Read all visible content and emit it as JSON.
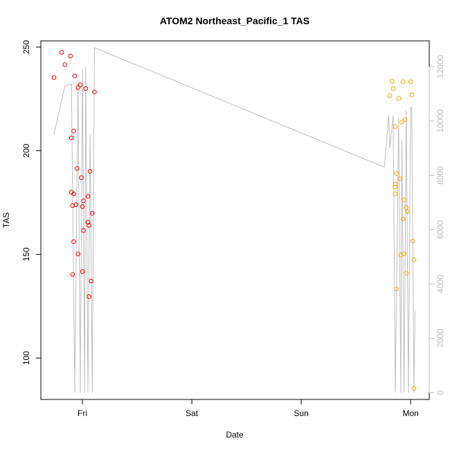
{
  "chart_data": {
    "type": "scatter",
    "title": "ATOM2 Northeast_Pacific_1 TAS",
    "xlabel": "Date",
    "ylabel": "TAS",
    "x_ticks": [
      {
        "x": 1.0,
        "label": "Fri"
      },
      {
        "x": 2.0,
        "label": "Sat"
      },
      {
        "x": 3.0,
        "label": "Sun"
      },
      {
        "x": 4.0,
        "label": "Mon"
      }
    ],
    "xlim": [
      0.62,
      4.17
    ],
    "ylim": [
      80,
      253
    ],
    "y_ticks": [
      100,
      150,
      200,
      250
    ],
    "y2lim": [
      -250,
      12950
    ],
    "y2_ticks": [
      0,
      2000,
      4000,
      6000,
      8000,
      10000,
      12000
    ],
    "grid": false,
    "legend": "none",
    "colors": {
      "series_1": "#FF0000",
      "series_2": "#FFA500",
      "altitude_line": "#BEBEBE",
      "right_axis": "#BEBEBE"
    },
    "series": [
      {
        "color_key": "series_1",
        "points": [
          [
            0.74,
            235.3
          ],
          [
            0.81,
            247.5
          ],
          [
            0.84,
            241.5
          ],
          [
            0.89,
            245.7
          ],
          [
            0.93,
            236.1
          ],
          [
            0.96,
            230.5
          ],
          [
            0.98,
            231.8
          ],
          [
            1.03,
            230.0
          ],
          [
            1.11,
            228.4
          ],
          [
            0.92,
            209.5
          ],
          [
            0.9,
            206.2
          ],
          [
            0.95,
            191.4
          ],
          [
            1.07,
            190.0
          ],
          [
            0.99,
            187.0
          ],
          [
            0.9,
            180.0
          ],
          [
            0.92,
            179.2
          ],
          [
            1.05,
            178.0
          ],
          [
            1.01,
            175.8
          ],
          [
            0.91,
            173.5
          ],
          [
            0.94,
            174.0
          ],
          [
            1.0,
            173.0
          ],
          [
            1.09,
            169.8
          ],
          [
            1.05,
            165.5
          ],
          [
            1.06,
            164.0
          ],
          [
            1.01,
            161.5
          ],
          [
            0.92,
            156.1
          ],
          [
            0.96,
            150.2
          ],
          [
            1.0,
            141.7
          ],
          [
            0.91,
            140.3
          ],
          [
            1.08,
            137.1
          ],
          [
            1.06,
            129.6
          ]
        ]
      },
      {
        "color_key": "series_2",
        "points": [
          [
            3.83,
            233.5
          ],
          [
            3.93,
            233.3
          ],
          [
            4.0,
            233.3
          ],
          [
            3.84,
            229.9
          ],
          [
            3.81,
            226.5
          ],
          [
            4.01,
            226.9
          ],
          [
            3.89,
            225.2
          ],
          [
            3.95,
            215.0
          ],
          [
            3.92,
            213.8
          ],
          [
            3.86,
            211.7
          ],
          [
            3.87,
            189.0
          ],
          [
            3.9,
            186.5
          ],
          [
            3.86,
            184.0
          ],
          [
            3.86,
            182.5
          ],
          [
            3.86,
            179.2
          ],
          [
            3.94,
            176.3
          ],
          [
            3.96,
            172.6
          ],
          [
            3.97,
            170.7
          ],
          [
            3.93,
            167.1
          ],
          [
            4.02,
            156.4
          ],
          [
            3.94,
            150.3
          ],
          [
            3.91,
            149.6
          ],
          [
            4.03,
            147.4
          ],
          [
            3.96,
            141.0
          ],
          [
            3.87,
            133.3
          ],
          [
            4.03,
            85.3
          ]
        ]
      }
    ],
    "altitude_line": {
      "color_key": "altitude_line",
      "points": [
        [
          0.74,
          9500
        ],
        [
          0.84,
          11300
        ],
        [
          0.9,
          11350
        ],
        [
          0.93,
          0
        ],
        [
          0.96,
          11500
        ],
        [
          0.98,
          0
        ],
        [
          1.0,
          11900
        ],
        [
          1.02,
          0
        ],
        [
          1.03,
          12000
        ],
        [
          1.05,
          0
        ],
        [
          1.07,
          9500
        ],
        [
          1.09,
          0
        ],
        [
          1.11,
          12700
        ],
        [
          3.76,
          8300
        ],
        [
          3.8,
          10200
        ],
        [
          3.81,
          9000
        ],
        [
          3.84,
          10200
        ],
        [
          3.86,
          0
        ],
        [
          3.89,
          10100
        ],
        [
          3.91,
          0
        ],
        [
          3.92,
          9300
        ],
        [
          3.94,
          0
        ],
        [
          3.96,
          10400
        ],
        [
          3.98,
          0
        ],
        [
          4.0,
          10500
        ],
        [
          4.01,
          10500
        ],
        [
          4.03,
          0
        ],
        [
          4.04,
          3000
        ]
      ]
    }
  }
}
